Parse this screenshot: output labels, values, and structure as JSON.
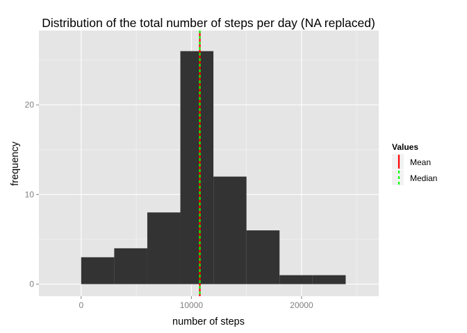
{
  "chart_data": {
    "type": "bar",
    "title": "Distribution of the total number of steps per day (NA replaced)",
    "xlabel": "number of steps",
    "ylabel": "frequency",
    "xlim": [
      -3833,
      27000
    ],
    "ylim": [
      -1.35,
      28.3
    ],
    "x_ticks": [
      0,
      10000,
      20000
    ],
    "y_ticks": [
      0,
      10,
      20
    ],
    "x_tick_labels": [
      "0",
      "10000",
      "20000"
    ],
    "y_tick_labels": [
      "0",
      "10",
      "20"
    ],
    "grid": true,
    "bins": [
      {
        "start": 0,
        "end": 3000,
        "count": 3
      },
      {
        "start": 3000,
        "end": 6000,
        "count": 4
      },
      {
        "start": 6000,
        "end": 9000,
        "count": 8
      },
      {
        "start": 9000,
        "end": 12000,
        "count": 26
      },
      {
        "start": 12000,
        "end": 15000,
        "count": 12
      },
      {
        "start": 15000,
        "end": 18000,
        "count": 6
      },
      {
        "start": 18000,
        "end": 21000,
        "count": 1
      },
      {
        "start": 21000,
        "end": 24000,
        "count": 1
      }
    ],
    "bar_color": "#333333",
    "reference_lines": [
      {
        "name": "Mean",
        "value": 10766.19,
        "color": "#ff0000",
        "style": "solid"
      },
      {
        "name": "Median",
        "value": 10766.19,
        "color": "#00ff00",
        "style": "dashed"
      }
    ],
    "legend": {
      "title": "Values",
      "placement": "right",
      "entries": [
        {
          "label": "Mean",
          "color": "#ff0000",
          "style": "solid"
        },
        {
          "label": "Median",
          "color": "#00ff00",
          "style": "dashed"
        }
      ]
    },
    "panel_background": "#e5e5e5",
    "grid_color": "#ffffff"
  }
}
